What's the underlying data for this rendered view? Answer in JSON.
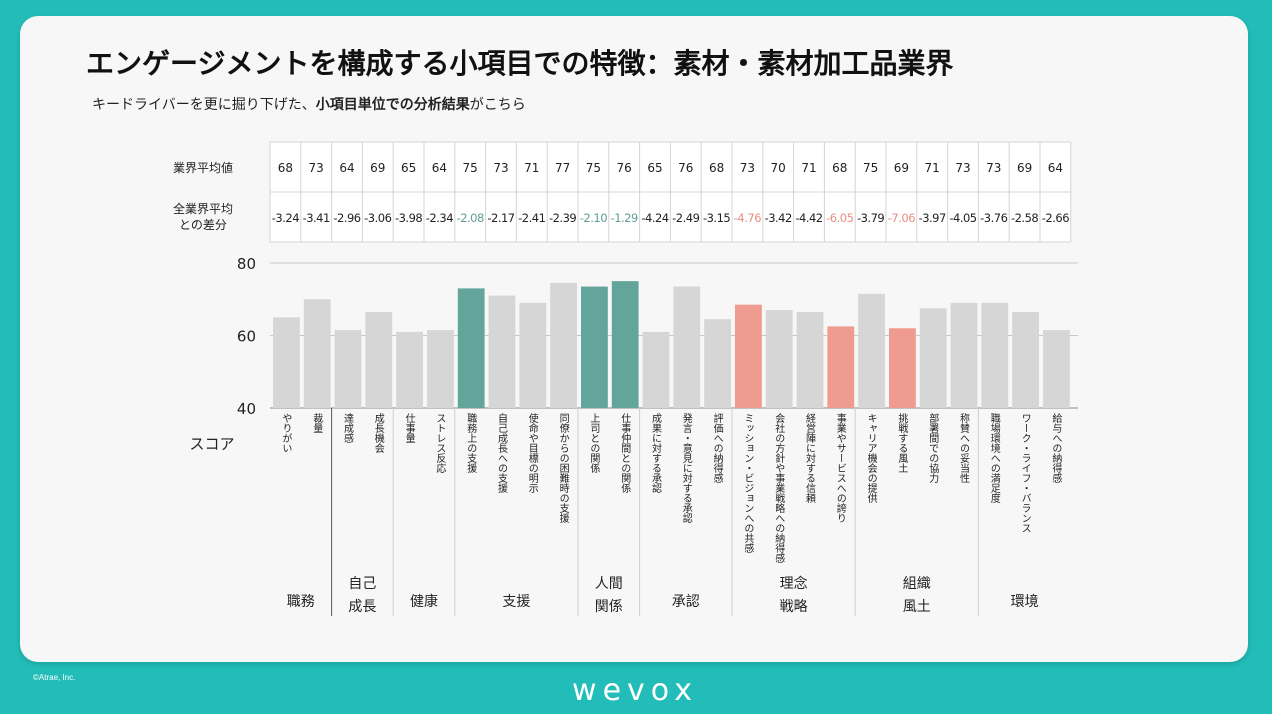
{
  "title": "エンゲージメントを構成する小項目での特徴：素材・素材加工品業界",
  "subtitle_pre": "キードライバーを更に掘り下げた、",
  "subtitle_bold": "小項目単位での分析結果",
  "subtitle_post": "がこちら",
  "copyright": "©Atrae, Inc.",
  "logo_text": "wevox",
  "colors": {
    "background": "#22bdb8",
    "bar_default": "#d6d6d6",
    "bar_green": "#63a59b",
    "bar_red": "#ef9b90",
    "diff_green": "#5e9e94",
    "diff_red": "#e98d82"
  },
  "table": {
    "row1_label": "業界平均値",
    "row2_label_1": "全業界平均",
    "row2_label_2": "との差分"
  },
  "score_label": "スコア",
  "chart_data": {
    "type": "bar",
    "ylim": [
      40,
      80
    ],
    "yticks": [
      "80",
      "60",
      "40"
    ],
    "categories": [
      "やりがい",
      "裁量",
      "達成感",
      "成長機会",
      "仕事量",
      "ストレス反応",
      "職務上の支援",
      "自己成長への支援",
      "使命や目標の明示",
      "同僚からの困難時の支援",
      "上司との関係",
      "仕事仲間との関係",
      "成果に対する承認",
      "発言・意見に対する承認",
      "評価への納得感",
      "ミッション・ビジョンへの共感",
      "会社の方針や事業戦略への納得感",
      "経営陣に対する信頼",
      "事業やサービスへの誇り",
      "キャリア機会の提供",
      "挑戦する風土",
      "部署間での協力",
      "称賛への妥当性",
      "職場環境への満足度",
      "ワーク・ライフ・バランス",
      "給与への納得感"
    ],
    "values": [
      65,
      70,
      61.5,
      66.5,
      61,
      61.5,
      73,
      71,
      69,
      74.5,
      73.5,
      75,
      61,
      73.5,
      64.5,
      68.5,
      67,
      66.5,
      62.5,
      71.5,
      62,
      67.5,
      69,
      69,
      66.5,
      61.5
    ],
    "industry_avg": [
      "68",
      "73",
      "64",
      "69",
      "65",
      "64",
      "75",
      "73",
      "71",
      "77",
      "75",
      "76",
      "65",
      "76",
      "68",
      "73",
      "70",
      "71",
      "68",
      "75",
      "69",
      "71",
      "73",
      "73",
      "69",
      "64"
    ],
    "diff": [
      "-3.24",
      "-3.41",
      "-2.96",
      "-3.06",
      "-3.98",
      "-2.34",
      "-2.08",
      "-2.17",
      "-2.41",
      "-2.39",
      "-2.10",
      "-1.29",
      "-4.24",
      "-2.49",
      "-3.15",
      "-4.76",
      "-3.42",
      "-4.42",
      "-6.05",
      "-3.79",
      "-7.06",
      "-3.97",
      "-4.05",
      "-3.76",
      "-2.58",
      "-2.66"
    ],
    "highlight": [
      "none",
      "none",
      "none",
      "none",
      "none",
      "none",
      "green",
      "none",
      "none",
      "none",
      "green",
      "green",
      "none",
      "none",
      "none",
      "red",
      "none",
      "none",
      "red",
      "none",
      "red",
      "none",
      "none",
      "none",
      "none",
      "none"
    ],
    "groups": [
      {
        "name": "職務",
        "start": 0,
        "count": 2
      },
      {
        "name": "自己成長",
        "start": 2,
        "count": 2
      },
      {
        "name": "健康",
        "start": 4,
        "count": 2
      },
      {
        "name": "支援",
        "start": 6,
        "count": 4
      },
      {
        "name": "人間関係",
        "start": 10,
        "count": 2
      },
      {
        "name": "承認",
        "start": 12,
        "count": 3
      },
      {
        "name": "理念戦略",
        "start": 15,
        "count": 4
      },
      {
        "name": "組織風土",
        "start": 19,
        "count": 4
      },
      {
        "name": "環境",
        "start": 23,
        "count": 3
      }
    ]
  }
}
